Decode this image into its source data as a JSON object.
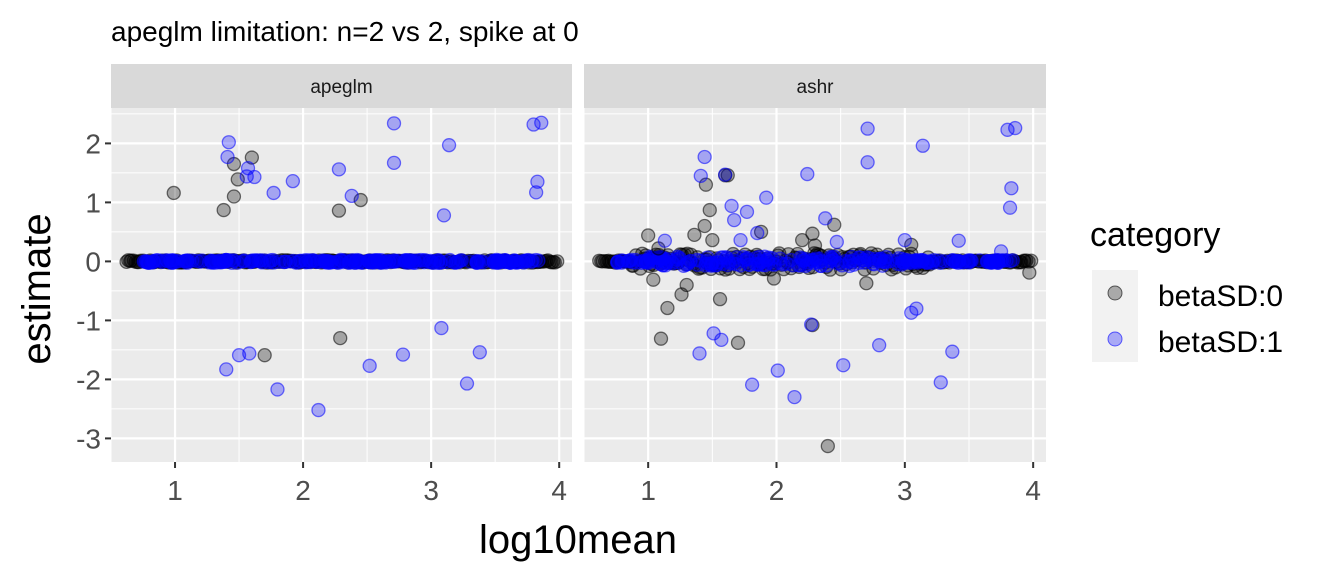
{
  "chart_data": {
    "type": "scatter",
    "title": "apeglm limitation: n=2 vs 2, spike at 0",
    "xlabel": "log10mean",
    "ylabel": "estimate",
    "xlim": [
      0.5,
      4.1
    ],
    "ylim": [
      -3.4,
      2.6
    ],
    "x_ticks": [
      "1",
      "2",
      "3",
      "4"
    ],
    "y_ticks": [
      "-3",
      "-2",
      "-1",
      "0",
      "1",
      "2"
    ],
    "grid": true,
    "legend": {
      "title": "category",
      "position": "right",
      "entries": [
        {
          "label": "betaSD:0",
          "color": "#000000"
        },
        {
          "label": "betaSD:1",
          "color": "#0000FF"
        }
      ]
    },
    "background_color": "#EBEBEB",
    "strip_color": "#D9D9D9",
    "series_colors": {
      "betaSD:0": "#000000",
      "betaSD:1": "#0000FF"
    },
    "panels": [
      {
        "label": "apeglm",
        "betaSD:1": [
          [
            1.42,
            2.02
          ],
          [
            1.41,
            1.77
          ],
          [
            1.56,
            1.44
          ],
          [
            1.62,
            1.43
          ],
          [
            1.57,
            1.58
          ],
          [
            1.77,
            1.16
          ],
          [
            1.92,
            1.36
          ],
          [
            2.28,
            1.56
          ],
          [
            2.38,
            1.11
          ],
          [
            2.71,
            2.34
          ],
          [
            2.71,
            1.67
          ],
          [
            3.14,
            1.97
          ],
          [
            3.1,
            0.78
          ],
          [
            3.8,
            2.32
          ],
          [
            3.86,
            2.35
          ],
          [
            3.83,
            1.35
          ],
          [
            3.82,
            1.17
          ],
          [
            1.4,
            -1.83
          ],
          [
            1.5,
            -1.59
          ],
          [
            1.58,
            -1.56
          ],
          [
            1.8,
            -2.17
          ],
          [
            2.12,
            -2.52
          ],
          [
            2.52,
            -1.77
          ],
          [
            2.78,
            -1.58
          ],
          [
            3.08,
            -1.13
          ],
          [
            3.28,
            -2.07
          ],
          [
            3.38,
            -1.54
          ]
        ],
        "betaSD:0": [
          [
            0.99,
            1.16
          ],
          [
            1.38,
            0.87
          ],
          [
            1.46,
            1.1
          ],
          [
            1.46,
            1.65
          ],
          [
            1.49,
            1.39
          ],
          [
            1.6,
            1.76
          ],
          [
            2.28,
            0.86
          ],
          [
            2.45,
            1.04
          ],
          [
            1.7,
            -1.59
          ],
          [
            2.29,
            -1.3
          ]
        ]
      },
      {
        "label": "ashr",
        "betaSD:1": [
          [
            1.44,
            1.77
          ],
          [
            1.41,
            1.45
          ],
          [
            1.6,
            1.47
          ],
          [
            1.65,
            0.94
          ],
          [
            1.67,
            0.7
          ],
          [
            1.72,
            0.36
          ],
          [
            1.77,
            0.84
          ],
          [
            1.85,
            0.48
          ],
          [
            1.92,
            1.08
          ],
          [
            2.24,
            1.48
          ],
          [
            2.38,
            0.73
          ],
          [
            2.47,
            0.33
          ],
          [
            2.71,
            2.25
          ],
          [
            2.71,
            1.68
          ],
          [
            3.14,
            1.96
          ],
          [
            3.0,
            0.36
          ],
          [
            3.8,
            2.23
          ],
          [
            3.86,
            2.26
          ],
          [
            3.83,
            1.24
          ],
          [
            3.82,
            0.91
          ],
          [
            1.13,
            0.35
          ],
          [
            1.4,
            -1.56
          ],
          [
            1.51,
            -1.22
          ],
          [
            1.57,
            -1.33
          ],
          [
            1.81,
            -2.09
          ],
          [
            2.01,
            -1.85
          ],
          [
            2.14,
            -2.3
          ],
          [
            2.27,
            -1.07
          ],
          [
            2.52,
            -1.76
          ],
          [
            2.8,
            -1.42
          ],
          [
            3.05,
            -0.87
          ],
          [
            3.09,
            -0.8
          ],
          [
            3.28,
            -2.05
          ],
          [
            3.37,
            -1.53
          ],
          [
            3.42,
            0.35
          ],
          [
            3.75,
            0.17
          ]
        ],
        "betaSD:0": [
          [
            1.0,
            0.44
          ],
          [
            1.08,
            0.22
          ],
          [
            1.36,
            0.45
          ],
          [
            1.44,
            0.6
          ],
          [
            1.45,
            1.3
          ],
          [
            1.48,
            0.87
          ],
          [
            1.5,
            0.36
          ],
          [
            1.6,
            1.46
          ],
          [
            1.62,
            1.46
          ],
          [
            1.88,
            0.5
          ],
          [
            2.2,
            0.36
          ],
          [
            2.28,
            0.47
          ],
          [
            2.3,
            0.27
          ],
          [
            2.45,
            0.62
          ],
          [
            1.1,
            -1.31
          ],
          [
            1.15,
            -0.79
          ],
          [
            1.26,
            -0.56
          ],
          [
            1.56,
            -0.64
          ],
          [
            1.7,
            -1.38
          ],
          [
            2.28,
            -1.08
          ],
          [
            2.4,
            -3.13
          ],
          [
            2.7,
            -0.37
          ],
          [
            1.04,
            -0.31
          ],
          [
            1.3,
            -0.4
          ],
          [
            1.98,
            -0.29
          ],
          [
            3.97,
            -0.19
          ],
          [
            3.05,
            0.28
          ]
        ]
      }
    ]
  }
}
